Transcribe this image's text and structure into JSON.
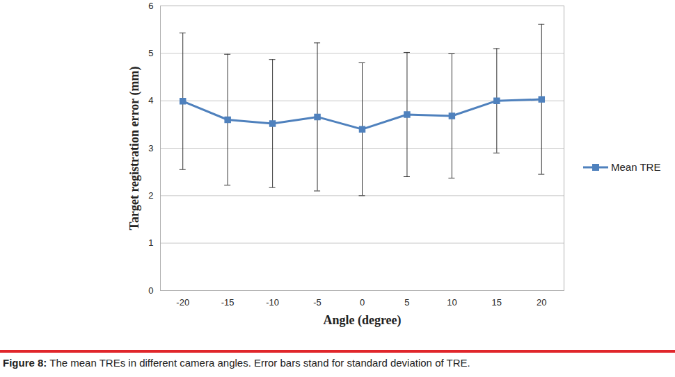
{
  "chart_data": {
    "type": "line",
    "x_label": "Angle (degree)",
    "y_label": "Target registration error (mm)",
    "caption": "Figure 8: The mean TREs in different camera angles. Error bars stand for standard deviation of TRE.",
    "x": [
      -20,
      -15,
      -10,
      -5,
      0,
      5,
      10,
      15,
      20
    ],
    "series": [
      {
        "name": "Mean TRE",
        "color": "#4f81bd",
        "marker": "square",
        "values": [
          3.99,
          3.6,
          3.52,
          3.66,
          3.4,
          3.71,
          3.68,
          4.0,
          4.03
        ],
        "sd": [
          1.44,
          1.38,
          1.35,
          1.56,
          1.4,
          1.31,
          1.31,
          1.1,
          1.58
        ]
      }
    ],
    "xlim": [
      -22.5,
      22.5
    ],
    "xticks": [
      -20,
      -15,
      -10,
      -5,
      0,
      5,
      10,
      15,
      20
    ],
    "ylim": [
      0,
      6
    ],
    "yticks": [
      0,
      1,
      2,
      3,
      4,
      5,
      6
    ],
    "grid": true,
    "legend": "right"
  }
}
